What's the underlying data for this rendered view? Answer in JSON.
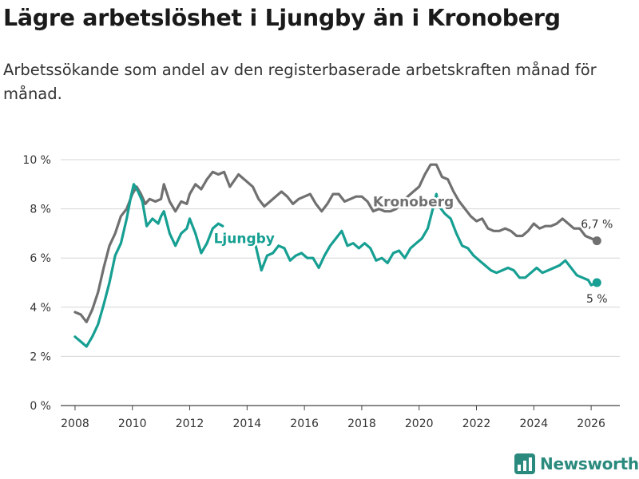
{
  "title": "Lägre arbetslöshet i Ljungby än i Kronoberg",
  "subtitle": "Arbetssökande som andel av den registerbaserade arbetskraften månad för månad.",
  "brand": "Newsworthy",
  "colors": {
    "kronoberg": "#707070",
    "ljungby": "#169f92",
    "grid": "#d6d6d6",
    "brand": "#2a8a7d"
  },
  "chart_data": {
    "type": "line",
    "title": "Lägre arbetslöshet i Ljungby än i Kronoberg",
    "xlabel": "",
    "ylabel": "",
    "xlim": [
      2007.5,
      2027.0
    ],
    "ylim": [
      0,
      10
    ],
    "x_ticks": [
      2008,
      2010,
      2012,
      2014,
      2016,
      2018,
      2020,
      2022,
      2024,
      2026
    ],
    "x_tick_labels": [
      "2008",
      "2010",
      "2012",
      "2014",
      "2016",
      "2018",
      "2020",
      "2022",
      "2024",
      "2026"
    ],
    "y_ticks": [
      0,
      2,
      4,
      6,
      8,
      10
    ],
    "y_tick_labels": [
      "0 %",
      "2 %",
      "4 %",
      "6 %",
      "8 %",
      "10 %"
    ],
    "grid": true,
    "series": [
      {
        "name": "Kronoberg",
        "label": "Kronoberg",
        "end_label": "6,7 %",
        "points": [
          [
            2008.0,
            3.8
          ],
          [
            2008.2,
            3.7
          ],
          [
            2008.4,
            3.4
          ],
          [
            2008.6,
            3.9
          ],
          [
            2008.8,
            4.6
          ],
          [
            2009.0,
            5.6
          ],
          [
            2009.2,
            6.5
          ],
          [
            2009.4,
            7.0
          ],
          [
            2009.6,
            7.7
          ],
          [
            2009.8,
            8.0
          ],
          [
            2010.0,
            8.6
          ],
          [
            2010.15,
            8.9
          ],
          [
            2010.3,
            8.6
          ],
          [
            2010.45,
            8.2
          ],
          [
            2010.6,
            8.4
          ],
          [
            2010.8,
            8.3
          ],
          [
            2011.0,
            8.4
          ],
          [
            2011.1,
            9.0
          ],
          [
            2011.3,
            8.3
          ],
          [
            2011.5,
            7.9
          ],
          [
            2011.7,
            8.3
          ],
          [
            2011.9,
            8.2
          ],
          [
            2012.0,
            8.6
          ],
          [
            2012.2,
            9.0
          ],
          [
            2012.4,
            8.8
          ],
          [
            2012.6,
            9.2
          ],
          [
            2012.8,
            9.5
          ],
          [
            2013.0,
            9.4
          ],
          [
            2013.2,
            9.5
          ],
          [
            2013.4,
            8.9
          ],
          [
            2013.7,
            9.4
          ],
          [
            2014.0,
            9.1
          ],
          [
            2014.2,
            8.9
          ],
          [
            2014.4,
            8.4
          ],
          [
            2014.6,
            8.1
          ],
          [
            2014.8,
            8.3
          ],
          [
            2015.0,
            8.5
          ],
          [
            2015.2,
            8.7
          ],
          [
            2015.4,
            8.5
          ],
          [
            2015.6,
            8.2
          ],
          [
            2015.8,
            8.4
          ],
          [
            2016.0,
            8.5
          ],
          [
            2016.2,
            8.6
          ],
          [
            2016.4,
            8.2
          ],
          [
            2016.6,
            7.9
          ],
          [
            2016.8,
            8.2
          ],
          [
            2017.0,
            8.6
          ],
          [
            2017.2,
            8.6
          ],
          [
            2017.4,
            8.3
          ],
          [
            2017.6,
            8.4
          ],
          [
            2017.8,
            8.5
          ],
          [
            2018.0,
            8.5
          ],
          [
            2018.2,
            8.3
          ],
          [
            2018.4,
            7.9
          ],
          [
            2018.6,
            8.0
          ],
          [
            2018.8,
            7.9
          ],
          [
            2019.0,
            7.9
          ],
          [
            2019.2,
            8.0
          ],
          [
            2019.4,
            8.3
          ],
          [
            2019.6,
            8.5
          ],
          [
            2019.8,
            8.7
          ],
          [
            2020.0,
            8.9
          ],
          [
            2020.2,
            9.4
          ],
          [
            2020.4,
            9.8
          ],
          [
            2020.6,
            9.8
          ],
          [
            2020.8,
            9.3
          ],
          [
            2021.0,
            9.2
          ],
          [
            2021.2,
            8.7
          ],
          [
            2021.4,
            8.3
          ],
          [
            2021.6,
            8.0
          ],
          [
            2021.8,
            7.7
          ],
          [
            2022.0,
            7.5
          ],
          [
            2022.2,
            7.6
          ],
          [
            2022.4,
            7.2
          ],
          [
            2022.6,
            7.1
          ],
          [
            2022.8,
            7.1
          ],
          [
            2023.0,
            7.2
          ],
          [
            2023.2,
            7.1
          ],
          [
            2023.4,
            6.9
          ],
          [
            2023.6,
            6.9
          ],
          [
            2023.8,
            7.1
          ],
          [
            2024.0,
            7.4
          ],
          [
            2024.2,
            7.2
          ],
          [
            2024.4,
            7.3
          ],
          [
            2024.6,
            7.3
          ],
          [
            2024.8,
            7.4
          ],
          [
            2025.0,
            7.6
          ],
          [
            2025.2,
            7.4
          ],
          [
            2025.4,
            7.2
          ],
          [
            2025.6,
            7.2
          ],
          [
            2025.8,
            6.9
          ],
          [
            2026.0,
            6.8
          ],
          [
            2026.2,
            6.7
          ]
        ]
      },
      {
        "name": "Ljungby",
        "label": "Ljungby",
        "end_label": "5 %",
        "points": [
          [
            2008.0,
            2.8
          ],
          [
            2008.2,
            2.6
          ],
          [
            2008.4,
            2.4
          ],
          [
            2008.6,
            2.8
          ],
          [
            2008.8,
            3.3
          ],
          [
            2009.0,
            4.1
          ],
          [
            2009.2,
            5.0
          ],
          [
            2009.4,
            6.1
          ],
          [
            2009.6,
            6.6
          ],
          [
            2009.8,
            7.6
          ],
          [
            2009.95,
            8.5
          ],
          [
            2010.05,
            9.0
          ],
          [
            2010.2,
            8.7
          ],
          [
            2010.35,
            8.3
          ],
          [
            2010.5,
            7.3
          ],
          [
            2010.7,
            7.6
          ],
          [
            2010.9,
            7.4
          ],
          [
            2011.0,
            7.7
          ],
          [
            2011.1,
            7.9
          ],
          [
            2011.3,
            7.0
          ],
          [
            2011.5,
            6.5
          ],
          [
            2011.7,
            7.0
          ],
          [
            2011.9,
            7.2
          ],
          [
            2012.0,
            7.6
          ],
          [
            2012.2,
            7.0
          ],
          [
            2012.4,
            6.2
          ],
          [
            2012.6,
            6.6
          ],
          [
            2012.8,
            7.2
          ],
          [
            2013.0,
            7.4
          ],
          [
            2013.15,
            7.3
          ],
          [
            2014.3,
            6.5
          ],
          [
            2014.5,
            5.5
          ],
          [
            2014.7,
            6.1
          ],
          [
            2014.9,
            6.2
          ],
          [
            2015.1,
            6.5
          ],
          [
            2015.3,
            6.4
          ],
          [
            2015.5,
            5.9
          ],
          [
            2015.7,
            6.1
          ],
          [
            2015.9,
            6.2
          ],
          [
            2016.1,
            6.0
          ],
          [
            2016.3,
            6.0
          ],
          [
            2016.5,
            5.6
          ],
          [
            2016.7,
            6.1
          ],
          [
            2016.9,
            6.5
          ],
          [
            2017.1,
            6.8
          ],
          [
            2017.3,
            7.1
          ],
          [
            2017.5,
            6.5
          ],
          [
            2017.7,
            6.6
          ],
          [
            2017.9,
            6.4
          ],
          [
            2018.1,
            6.6
          ],
          [
            2018.3,
            6.4
          ],
          [
            2018.5,
            5.9
          ],
          [
            2018.7,
            6.0
          ],
          [
            2018.9,
            5.8
          ],
          [
            2019.1,
            6.2
          ],
          [
            2019.3,
            6.3
          ],
          [
            2019.5,
            6.0
          ],
          [
            2019.7,
            6.4
          ],
          [
            2019.9,
            6.6
          ],
          [
            2020.1,
            6.8
          ],
          [
            2020.3,
            7.2
          ],
          [
            2020.5,
            8.1
          ],
          [
            2020.6,
            8.6
          ],
          [
            2020.7,
            8.1
          ],
          [
            2020.9,
            7.8
          ],
          [
            2021.1,
            7.6
          ],
          [
            2021.3,
            7.0
          ],
          [
            2021.5,
            6.5
          ],
          [
            2021.7,
            6.4
          ],
          [
            2021.9,
            6.1
          ],
          [
            2022.1,
            5.9
          ],
          [
            2022.3,
            5.7
          ],
          [
            2022.5,
            5.5
          ],
          [
            2022.7,
            5.4
          ],
          [
            2022.9,
            5.5
          ],
          [
            2023.1,
            5.6
          ],
          [
            2023.3,
            5.5
          ],
          [
            2023.5,
            5.2
          ],
          [
            2023.7,
            5.2
          ],
          [
            2023.9,
            5.4
          ],
          [
            2024.1,
            5.6
          ],
          [
            2024.3,
            5.4
          ],
          [
            2024.5,
            5.5
          ],
          [
            2024.7,
            5.6
          ],
          [
            2024.9,
            5.7
          ],
          [
            2025.1,
            5.9
          ],
          [
            2025.3,
            5.6
          ],
          [
            2025.5,
            5.3
          ],
          [
            2025.7,
            5.2
          ],
          [
            2025.9,
            5.1
          ],
          [
            2026.0,
            4.9
          ],
          [
            2026.2,
            5.0
          ]
        ]
      }
    ]
  }
}
